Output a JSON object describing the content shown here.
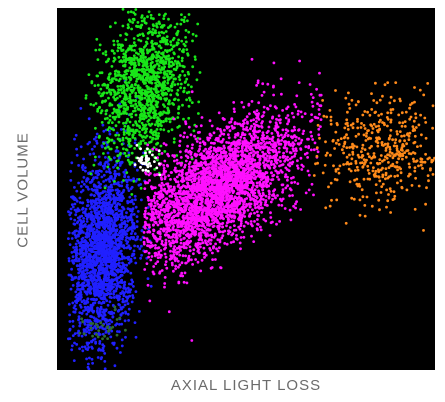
{
  "chart_data": {
    "type": "scatter",
    "title": "",
    "xlabel": "AXIAL LIGHT LOSS",
    "ylabel": "CELL VOLUME",
    "xlim": [
      0,
      100
    ],
    "ylim": [
      0,
      100
    ],
    "grid": false,
    "legend": "none",
    "background": "#000000",
    "series": [
      {
        "color": "#2020ff",
        "count": 2200,
        "center": [
          12,
          33
        ],
        "spread": [
          4.5,
          13
        ],
        "corr": 0.2,
        "xclip": [
          3,
          26
        ]
      },
      {
        "color": "#19e619",
        "count": 1300,
        "center": [
          23,
          79
        ],
        "spread": [
          6,
          10
        ],
        "corr": 0.2,
        "xclip": [
          7,
          38
        ]
      },
      {
        "color": "#ff10ff",
        "count": 3200,
        "center": [
          42,
          50
        ],
        "spread": [
          11,
          10
        ],
        "corr": 0.6,
        "xclip": [
          23,
          70
        ]
      },
      {
        "color": "#ff8a1a",
        "count": 480,
        "center": [
          87,
          61
        ],
        "spread": [
          9,
          8
        ],
        "corr": 0.2,
        "xclip": [
          68,
          100
        ]
      },
      {
        "color": "#ffffff",
        "count": 45,
        "center": [
          24,
          58
        ],
        "spread": [
          1.6,
          1.8
        ],
        "corr": 0,
        "xclip": [
          20,
          28
        ]
      },
      {
        "color": "#2f6b2f",
        "count": 30,
        "center": [
          12,
          12
        ],
        "spread": [
          2.5,
          2
        ],
        "corr": 0,
        "xclip": [
          5,
          20
        ]
      }
    ]
  }
}
